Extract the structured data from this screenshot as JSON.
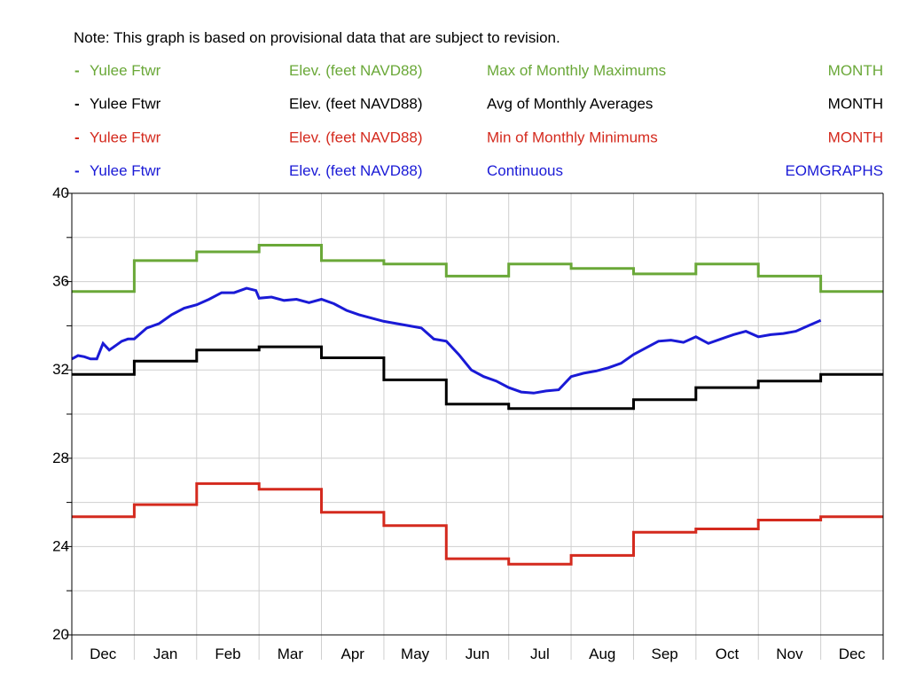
{
  "note": "Note: This graph is based on provisional data that are subject to revision.",
  "legend": [
    {
      "dash": "-",
      "station": "Yulee Ftwr",
      "parameter": "Elev. (feet NAVD88)",
      "statistic": "Max of Monthly Maximums",
      "interval": "MONTH",
      "color": "#6aa838"
    },
    {
      "dash": "-",
      "station": "Yulee Ftwr",
      "parameter": "Elev. (feet NAVD88)",
      "statistic": "Avg of Monthly Averages",
      "interval": "MONTH",
      "color": "#000000"
    },
    {
      "dash": "-",
      "station": "Yulee Ftwr",
      "parameter": "Elev. (feet NAVD88)",
      "statistic": "Min of Monthly Minimums",
      "interval": "MONTH",
      "color": "#d42a1e"
    },
    {
      "dash": "-",
      "station": "Yulee Ftwr",
      "parameter": "Elev. (feet NAVD88)",
      "statistic": "Continuous",
      "interval": "EOMGRAPHS",
      "color": "#1a1ad6"
    }
  ],
  "chart_data": {
    "type": "line",
    "x_ticks": [
      "Dec",
      "Jan",
      "Feb",
      "Mar",
      "Apr",
      "May",
      "Jun",
      "Jul",
      "Aug",
      "Sep",
      "Oct",
      "Nov",
      "Dec"
    ],
    "y_ticks": [
      20,
      24,
      28,
      32,
      36,
      40
    ],
    "ylim": [
      20,
      40
    ],
    "y_minor_step": 2,
    "grid": true,
    "legend_position": "top",
    "series": [
      {
        "name": "Max of Monthly Maximums",
        "color": "#6aa838",
        "style": "step",
        "values": [
          35.55,
          36.95,
          37.35,
          37.65,
          36.95,
          36.8,
          36.25,
          36.8,
          36.6,
          36.35,
          36.8,
          36.25,
          35.55
        ]
      },
      {
        "name": "Avg of Monthly Averages",
        "color": "#000000",
        "style": "step",
        "values": [
          31.8,
          32.4,
          32.9,
          33.05,
          32.55,
          31.55,
          30.45,
          30.25,
          30.25,
          30.65,
          31.2,
          31.5,
          31.8
        ]
      },
      {
        "name": "Min of Monthly Minimums",
        "color": "#d42a1e",
        "style": "step",
        "values": [
          25.35,
          25.9,
          26.85,
          26.6,
          25.55,
          24.95,
          23.45,
          23.2,
          23.6,
          24.65,
          24.8,
          25.2,
          25.35
        ]
      },
      {
        "name": "Continuous",
        "color": "#1a1ad6",
        "style": "line",
        "x": [
          0,
          0.1,
          0.2,
          0.3,
          0.4,
          0.5,
          0.6,
          0.7,
          0.8,
          0.9,
          1.0,
          1.2,
          1.4,
          1.6,
          1.8,
          2.0,
          2.2,
          2.4,
          2.6,
          2.8,
          2.95,
          3.0,
          3.2,
          3.4,
          3.6,
          3.8,
          4.0,
          4.2,
          4.4,
          4.6,
          4.8,
          5.0,
          5.2,
          5.4,
          5.6,
          5.8,
          6.0,
          6.2,
          6.4,
          6.6,
          6.8,
          7.0,
          7.2,
          7.4,
          7.6,
          7.8,
          8.0,
          8.2,
          8.4,
          8.6,
          8.8,
          9.0,
          9.2,
          9.4,
          9.6,
          9.8,
          10.0,
          10.2,
          10.4,
          10.6,
          10.8,
          11.0,
          11.2,
          11.4,
          11.6,
          11.8,
          12.0
        ],
        "values": [
          32.5,
          32.65,
          32.6,
          32.5,
          32.5,
          33.2,
          32.9,
          33.1,
          33.3,
          33.4,
          33.4,
          33.9,
          34.1,
          34.5,
          34.8,
          34.95,
          35.2,
          35.5,
          35.5,
          35.7,
          35.6,
          35.25,
          35.3,
          35.15,
          35.2,
          35.05,
          35.2,
          35.0,
          34.7,
          34.5,
          34.35,
          34.2,
          34.1,
          34.0,
          33.9,
          33.4,
          33.3,
          32.7,
          32.0,
          31.7,
          31.5,
          31.2,
          31.0,
          30.95,
          31.05,
          31.1,
          31.7,
          31.85,
          31.95,
          32.1,
          32.3,
          32.7,
          33.0,
          33.3,
          33.35,
          33.25,
          33.5,
          33.2,
          33.4,
          33.6,
          33.75,
          33.5,
          33.6,
          33.65,
          33.75,
          34.0,
          34.25
        ]
      }
    ]
  }
}
